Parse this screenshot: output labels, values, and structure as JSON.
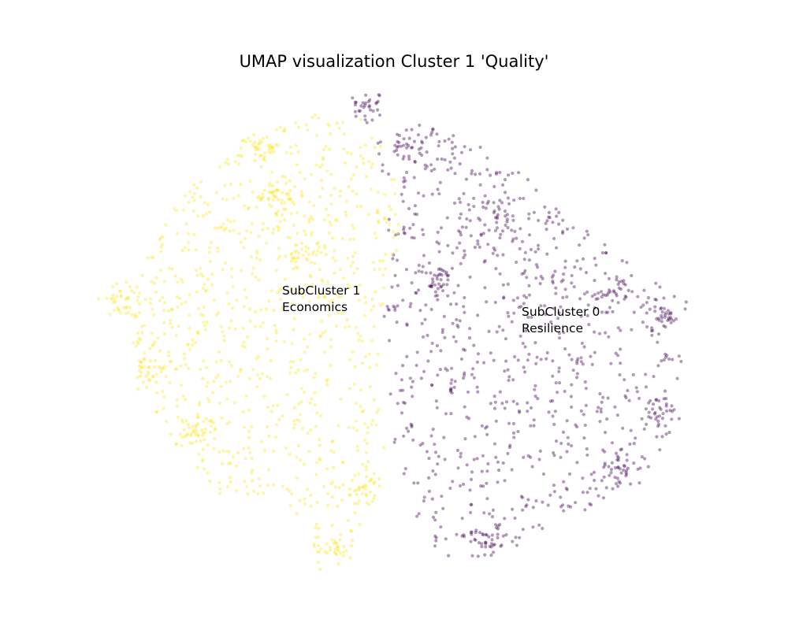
{
  "chart_data": {
    "type": "scatter",
    "title": "UMAP visualization Cluster 1 'Quality'",
    "xlabel": "",
    "ylabel": "",
    "axes_visible": false,
    "grid": false,
    "legend": "none",
    "xlim": [
      0,
      10
    ],
    "ylim": [
      0,
      10
    ],
    "point_opacity": 0.4,
    "colors": {
      "subcluster_0": "#440154",
      "subcluster_1": "#fde725"
    },
    "series": [
      {
        "id": "subcluster_0",
        "color": "#440154",
        "approx_point_count": 1100,
        "region": {
          "boundary": [
            [
              4.8,
              9.6
            ],
            [
              5.9,
              9.2
            ],
            [
              7.0,
              8.5
            ],
            [
              8.0,
              7.5
            ],
            [
              8.8,
              6.5
            ],
            [
              9.6,
              6.0
            ],
            [
              10.0,
              4.4
            ],
            [
              9.9,
              2.6
            ],
            [
              9.3,
              1.3
            ],
            [
              8.0,
              0.5
            ],
            [
              6.8,
              -0.3
            ],
            [
              5.7,
              -0.5
            ],
            [
              5.2,
              0.3
            ],
            [
              4.9,
              1.5
            ],
            [
              4.7,
              3.0
            ],
            [
              4.6,
              4.8
            ],
            [
              4.8,
              6.3
            ],
            [
              4.6,
              7.8
            ],
            [
              4.5,
              9.0
            ]
          ],
          "dense_spots": [
            [
              4.3,
              9.8
            ],
            [
              5.0,
              8.9
            ],
            [
              6.7,
              7.3
            ],
            [
              8.8,
              5.6
            ],
            [
              9.7,
              5.1
            ],
            [
              9.6,
              2.9
            ],
            [
              6.5,
              -0.1
            ],
            [
              8.8,
              1.6
            ],
            [
              5.6,
              5.9
            ]
          ]
        },
        "label": "SubCluster 0\nResilience",
        "label_position": [
          6.75,
          4.6
        ]
      },
      {
        "id": "subcluster_1",
        "color": "#fde725",
        "approx_point_count": 1100,
        "region": {
          "boundary": [
            [
              2.0,
              9.0
            ],
            [
              3.3,
              9.7
            ],
            [
              4.4,
              9.5
            ],
            [
              4.9,
              8.2
            ],
            [
              4.9,
              6.7
            ],
            [
              4.6,
              5.2
            ],
            [
              4.5,
              3.5
            ],
            [
              4.7,
              2.0
            ],
            [
              4.4,
              0.8
            ],
            [
              4.0,
              -0.3
            ],
            [
              3.0,
              0.6
            ],
            [
              1.7,
              1.0
            ],
            [
              0.7,
              2.4
            ],
            [
              0.3,
              3.6
            ],
            [
              -0.1,
              5.2
            ],
            [
              0.3,
              6.5
            ],
            [
              0.9,
              7.7
            ]
          ],
          "dense_spots": [
            [
              -0.1,
              5.4
            ],
            [
              0.5,
              3.8
            ],
            [
              1.3,
              2.5
            ],
            [
              4.2,
              1.2
            ],
            [
              3.7,
              -0.2
            ],
            [
              2.7,
              7.8
            ],
            [
              2.5,
              8.9
            ],
            [
              3.2,
              6.4
            ]
          ]
        },
        "label": "SubCluster 1\nEconomics",
        "label_position": [
          2.45,
          4.95
        ]
      }
    ],
    "annotations": [
      {
        "text": "SubCluster 1",
        "line2": "Economics",
        "series": "subcluster_1"
      },
      {
        "text": "SubCluster 0",
        "line2": "Resilience",
        "series": "subcluster_0"
      }
    ]
  }
}
